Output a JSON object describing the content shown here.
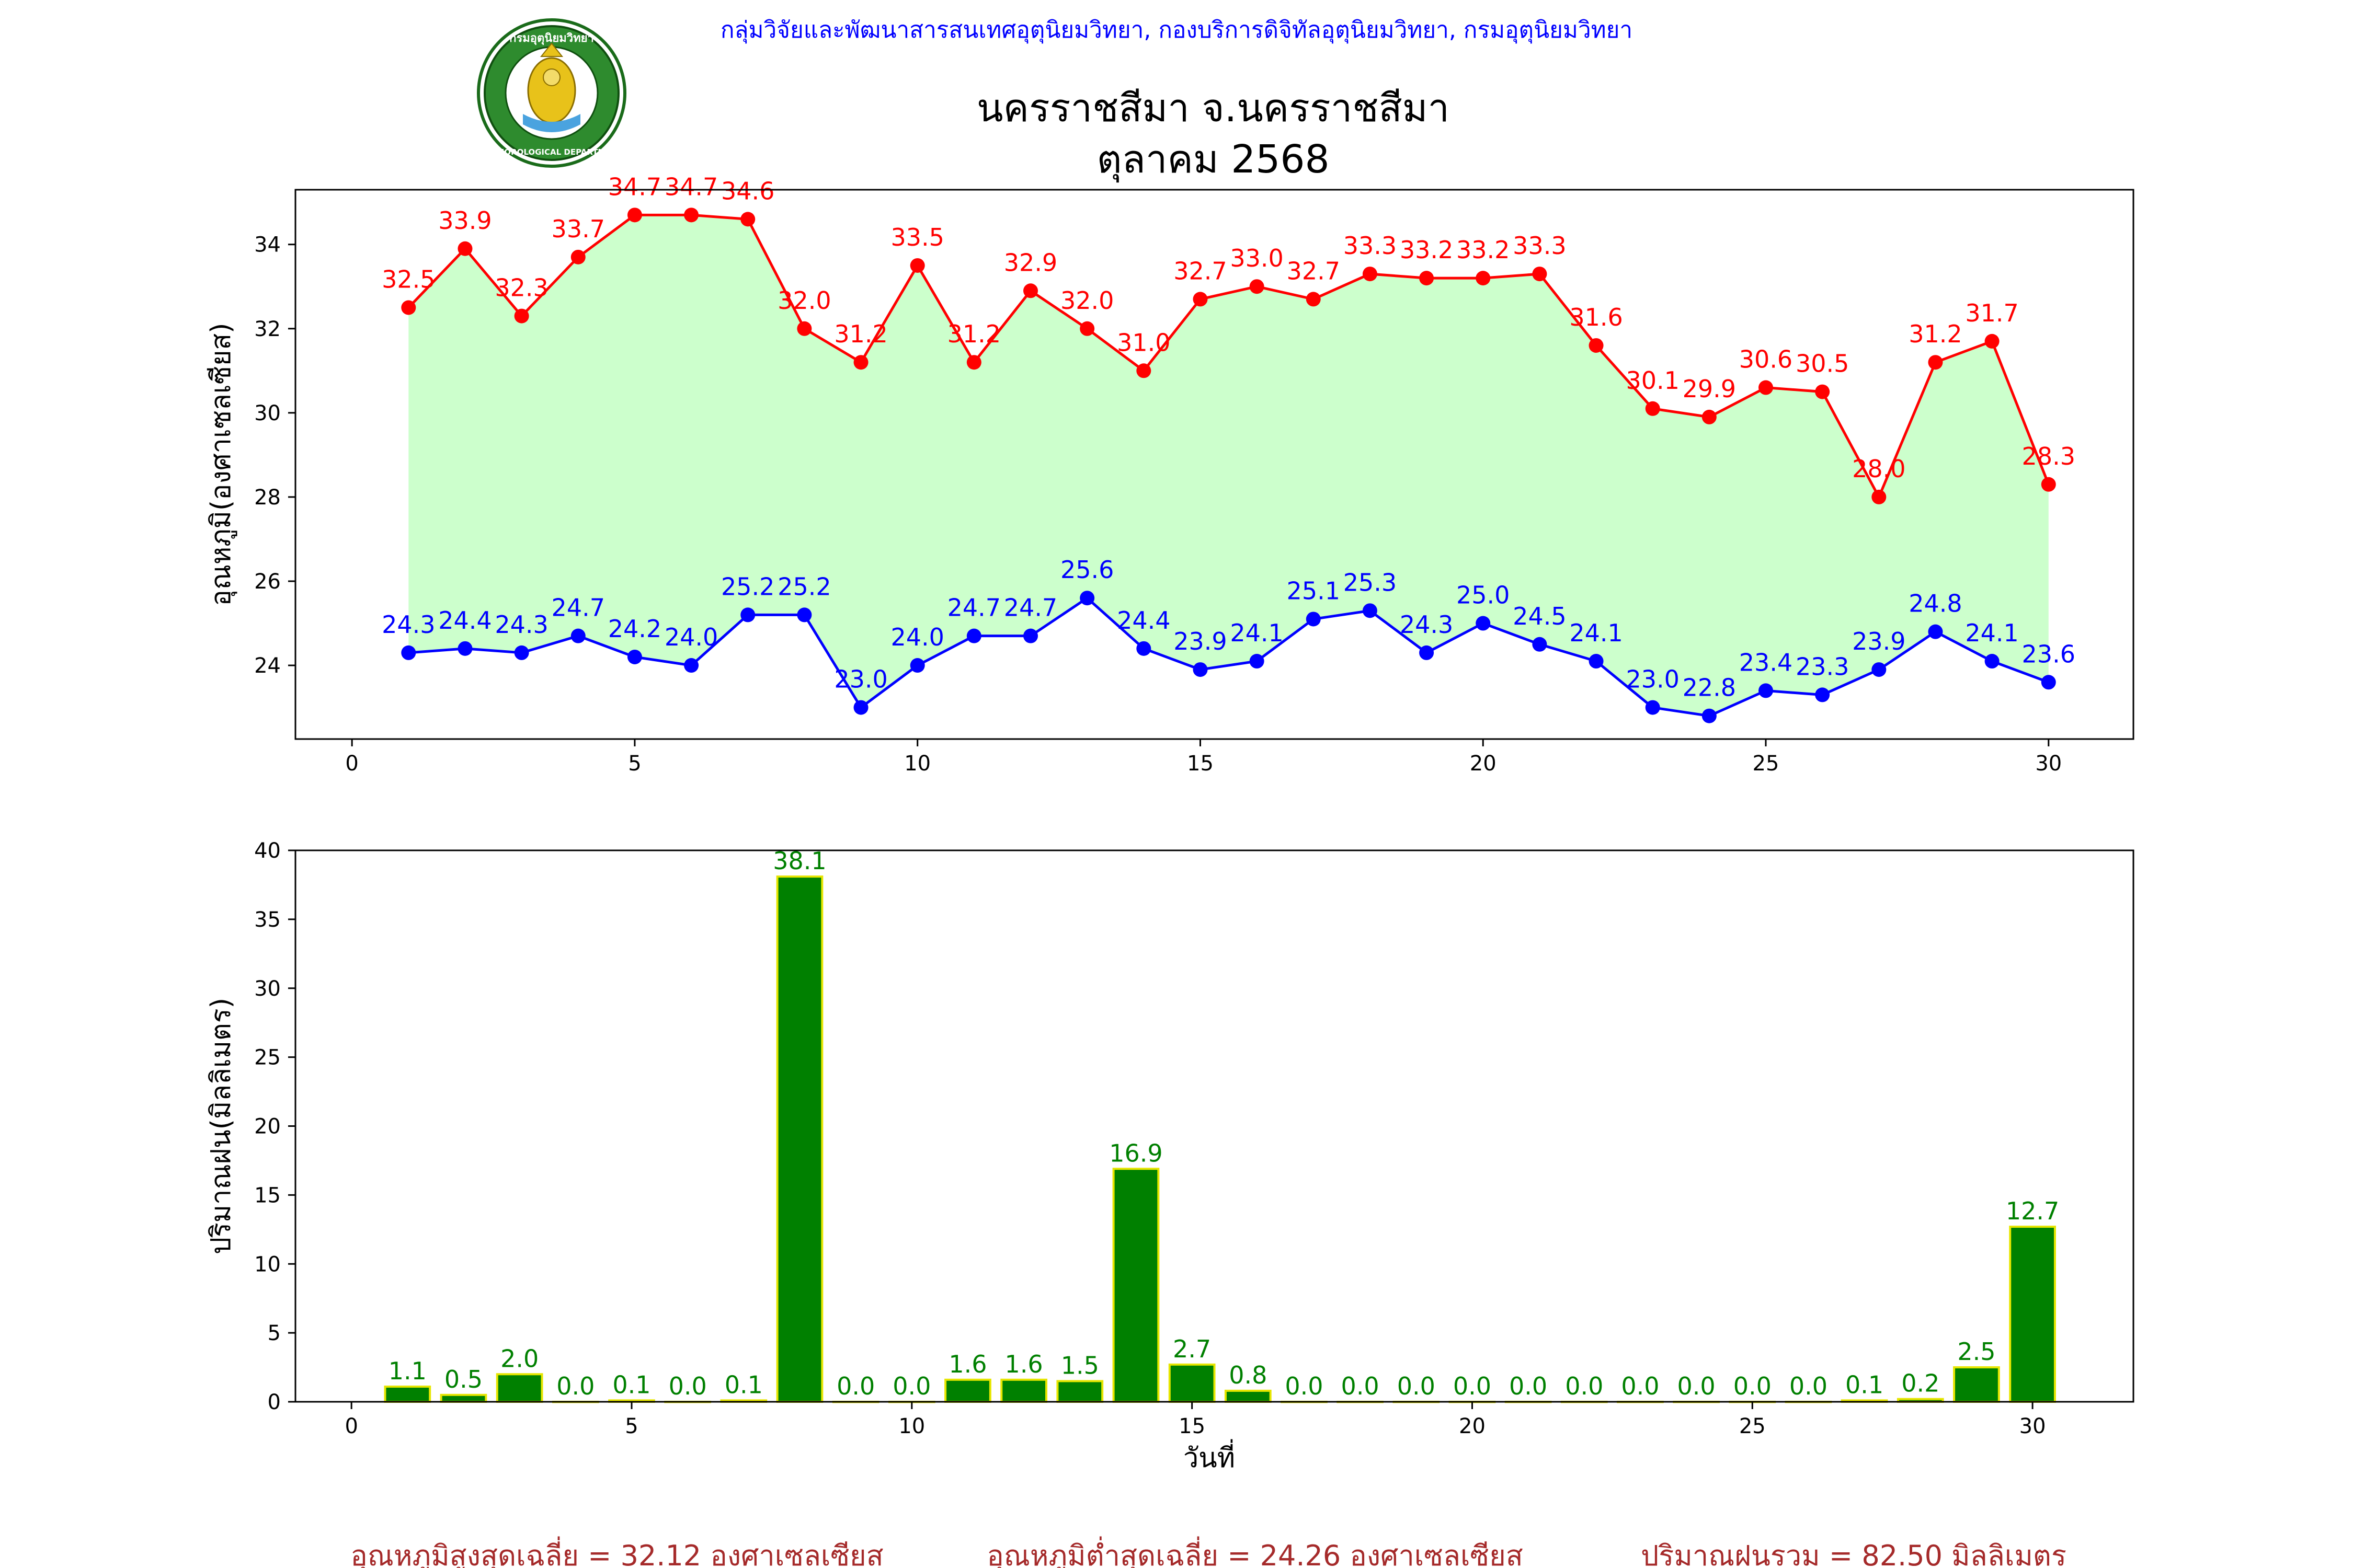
{
  "header": {
    "org_line": "กลุ่มวิจัยและพัฒนาสารสนเทศอุตุนิยมวิทยา, กองบริการดิจิทัลอุตุนิยมวิทยา, กรมอุตุนิยมวิทยา",
    "title_line1": "นครราชสีมา จ.นครราชสีมา",
    "title_line2": "ตุลาคม 2568",
    "logo_text_top": "กรมอุตุนิยมวิทยา",
    "logo_text_bottom": "METEOROLOGICAL DEPARTMENT"
  },
  "colors": {
    "header_text": "#0000ff",
    "tmax_line": "#ff0000",
    "tmin_line": "#0000ff",
    "fill_between": "#ccffcc",
    "rain_bar": "#008000",
    "rain_bar_edge": "#e6e600",
    "rain_label": "#008000",
    "footer_text": "#a52a2a"
  },
  "chart_data": [
    {
      "type": "line",
      "ylabel": "อุณหภูมิ(องศาเซลเซียส)",
      "xlim": [
        -1,
        31.5
      ],
      "ylim": [
        22.25,
        35.3
      ],
      "xticks": [
        0,
        5,
        10,
        15,
        20,
        25,
        30
      ],
      "yticks": [
        24,
        26,
        28,
        30,
        32,
        34
      ],
      "fill_between_series": true,
      "x": [
        1,
        2,
        3,
        4,
        5,
        6,
        7,
        8,
        9,
        10,
        11,
        12,
        13,
        14,
        15,
        16,
        17,
        18,
        19,
        20,
        21,
        22,
        23,
        24,
        25,
        26,
        27,
        28,
        29,
        30
      ],
      "series": [
        {
          "key": "tmax",
          "values": [
            32.5,
            33.9,
            32.3,
            33.7,
            34.7,
            34.7,
            34.6,
            32.0,
            31.2,
            33.5,
            31.2,
            32.9,
            32.0,
            31.0,
            32.7,
            33.0,
            32.7,
            33.3,
            33.2,
            33.2,
            33.3,
            31.6,
            30.1,
            29.9,
            30.6,
            30.5,
            28.0,
            31.2,
            31.7,
            28.3
          ]
        },
        {
          "key": "tmin",
          "values": [
            24.3,
            24.4,
            24.3,
            24.7,
            24.2,
            24.0,
            25.2,
            25.2,
            23.0,
            24.0,
            24.7,
            24.7,
            25.6,
            24.4,
            23.9,
            24.1,
            25.1,
            25.3,
            24.3,
            25.0,
            24.5,
            24.1,
            23.0,
            22.8,
            23.4,
            23.3,
            23.9,
            24.8,
            24.1,
            23.6
          ]
        }
      ]
    },
    {
      "type": "bar",
      "xlabel": "วันที่",
      "ylabel": "ปริมาณฝน(มิลลิเมตร)",
      "xlim": [
        -1,
        31.8
      ],
      "ylim": [
        0,
        40
      ],
      "xticks": [
        0,
        5,
        10,
        15,
        20,
        25,
        30
      ],
      "yticks": [
        0,
        5,
        10,
        15,
        20,
        25,
        30,
        35,
        40
      ],
      "x": [
        1,
        2,
        3,
        4,
        5,
        6,
        7,
        8,
        9,
        10,
        11,
        12,
        13,
        14,
        15,
        16,
        17,
        18,
        19,
        20,
        21,
        22,
        23,
        24,
        25,
        26,
        27,
        28,
        29,
        30
      ],
      "values": [
        1.1,
        0.5,
        2.0,
        0.0,
        0.1,
        0.0,
        0.1,
        38.1,
        0.0,
        0.0,
        1.6,
        1.6,
        1.5,
        16.9,
        2.7,
        0.8,
        0.0,
        0.0,
        0.0,
        0.0,
        0.0,
        0.0,
        0.0,
        0.0,
        0.0,
        0.0,
        0.1,
        0.2,
        2.5,
        12.7
      ]
    }
  ],
  "footer": {
    "avg_max": "อุณหภูมิสูงสุดเฉลี่ย = 32.12 องศาเซลเซียส",
    "avg_min": "อุณหภูมิต่ำสุดเฉลี่ย = 24.26 องศาเซลเซียส",
    "total_rain": "ปริมาณฝนรวม = 82.50 มิลลิเมตร"
  }
}
